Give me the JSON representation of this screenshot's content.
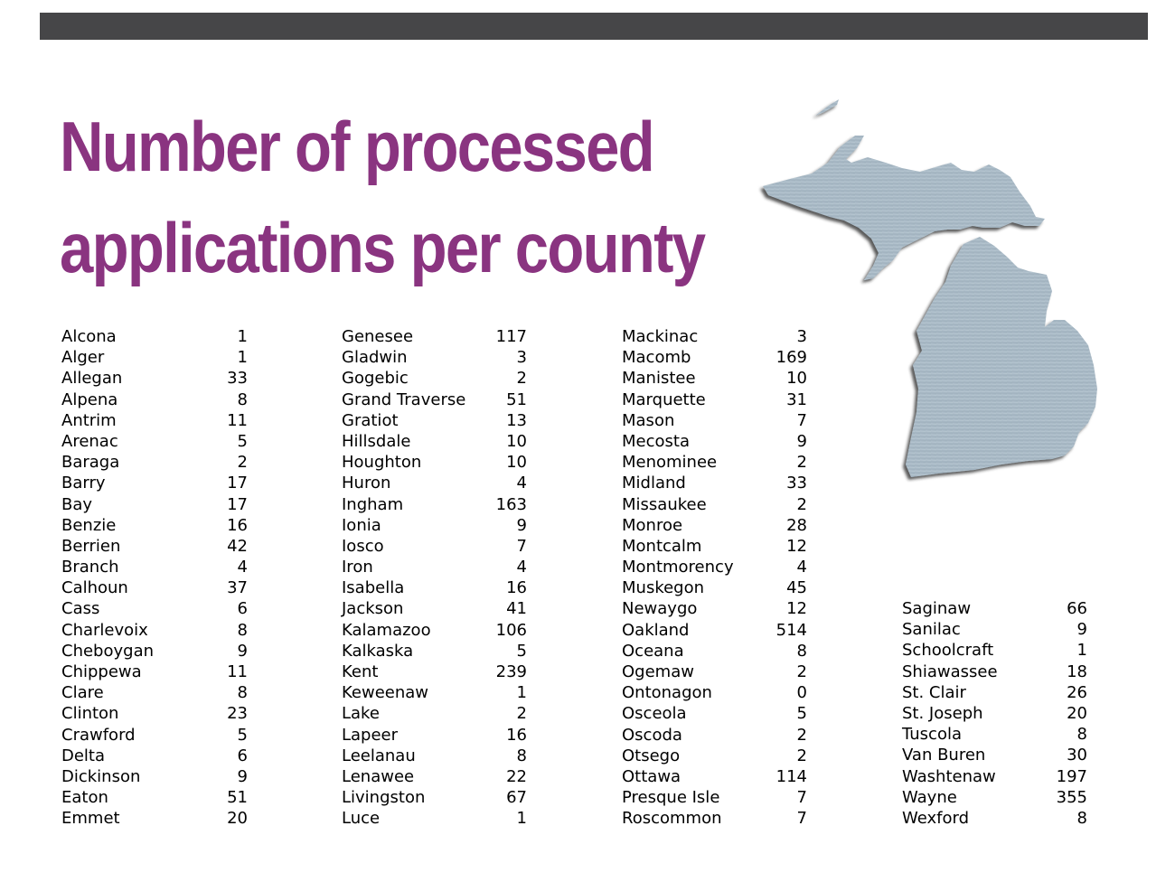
{
  "title": {
    "line1": "Number of processed",
    "line2": "applications per county"
  },
  "colors": {
    "title": "#8a3480",
    "bar": "#464648",
    "map": "#a9bac6"
  },
  "map_icon": "michigan-map",
  "columns": [
    [
      {
        "county": "Alcona",
        "count": "1"
      },
      {
        "county": "Alger",
        "count": "1"
      },
      {
        "county": "Allegan",
        "count": "33"
      },
      {
        "county": "Alpena",
        "count": "8"
      },
      {
        "county": "Antrim",
        "count": "11"
      },
      {
        "county": "Arenac",
        "count": "5"
      },
      {
        "county": "Baraga",
        "count": "2"
      },
      {
        "county": "Barry",
        "count": "17"
      },
      {
        "county": "Bay",
        "count": "17"
      },
      {
        "county": "Benzie",
        "count": "16"
      },
      {
        "county": "Berrien",
        "count": "42"
      },
      {
        "county": "Branch",
        "count": "4"
      },
      {
        "county": "Calhoun",
        "count": "37"
      },
      {
        "county": "Cass",
        "count": "6"
      },
      {
        "county": "Charlevoix",
        "count": "8"
      },
      {
        "county": "Cheboygan",
        "count": "9"
      },
      {
        "county": "Chippewa",
        "count": "11"
      },
      {
        "county": "Clare",
        "count": "8"
      },
      {
        "county": "Clinton",
        "count": "23"
      },
      {
        "county": "Crawford",
        "count": "5"
      },
      {
        "county": "Delta",
        "count": "6"
      },
      {
        "county": "Dickinson",
        "count": "9"
      },
      {
        "county": "Eaton",
        "count": "51"
      },
      {
        "county": "Emmet",
        "count": "20"
      }
    ],
    [
      {
        "county": "Genesee",
        "count": "117"
      },
      {
        "county": "Gladwin",
        "count": "3"
      },
      {
        "county": "Gogebic",
        "count": "2"
      },
      {
        "county": "Grand Traverse",
        "count": "51"
      },
      {
        "county": "Gratiot",
        "count": "13"
      },
      {
        "county": "Hillsdale",
        "count": "10"
      },
      {
        "county": "Houghton",
        "count": "10"
      },
      {
        "county": "Huron",
        "count": "4"
      },
      {
        "county": "Ingham",
        "count": "163"
      },
      {
        "county": "Ionia",
        "count": "9"
      },
      {
        "county": "Iosco",
        "count": "7"
      },
      {
        "county": "Iron",
        "count": "4"
      },
      {
        "county": "Isabella",
        "count": "16"
      },
      {
        "county": "Jackson",
        "count": "41"
      },
      {
        "county": "Kalamazoo",
        "count": "106"
      },
      {
        "county": "Kalkaska",
        "count": "5"
      },
      {
        "county": "Kent",
        "count": "239"
      },
      {
        "county": "Keweenaw",
        "count": "1"
      },
      {
        "county": "Lake",
        "count": "2"
      },
      {
        "county": "Lapeer",
        "count": "16"
      },
      {
        "county": "Leelanau",
        "count": "8"
      },
      {
        "county": "Lenawee",
        "count": "22"
      },
      {
        "county": "Livingston",
        "count": "67"
      },
      {
        "county": "Luce",
        "count": "1"
      }
    ],
    [
      {
        "county": "Mackinac",
        "count": "3"
      },
      {
        "county": "Macomb",
        "count": "169"
      },
      {
        "county": "Manistee",
        "count": "10"
      },
      {
        "county": "Marquette",
        "count": "31"
      },
      {
        "county": "Mason",
        "count": "7"
      },
      {
        "county": "Mecosta",
        "count": "9"
      },
      {
        "county": "Menominee",
        "count": "2"
      },
      {
        "county": "Midland",
        "count": "33"
      },
      {
        "county": "Missaukee",
        "count": "2"
      },
      {
        "county": "Monroe",
        "count": "28"
      },
      {
        "county": "Montcalm",
        "count": "12"
      },
      {
        "county": "Montmorency",
        "count": "4"
      },
      {
        "county": "Muskegon",
        "count": "45"
      },
      {
        "county": "Newaygo",
        "count": "12"
      },
      {
        "county": "Oakland",
        "count": "514"
      },
      {
        "county": "Oceana",
        "count": "8"
      },
      {
        "county": "Ogemaw",
        "count": "2"
      },
      {
        "county": "Ontonagon",
        "count": "0"
      },
      {
        "county": "Osceola",
        "count": "5"
      },
      {
        "county": "Oscoda",
        "count": "2"
      },
      {
        "county": "Otsego",
        "count": "2"
      },
      {
        "county": "Ottawa",
        "count": "114"
      },
      {
        "county": "Presque Isle",
        "count": "7"
      },
      {
        "county": "Roscommon",
        "count": "7"
      }
    ],
    [
      {
        "county": "Saginaw",
        "count": "66"
      },
      {
        "county": "Sanilac",
        "count": "9"
      },
      {
        "county": "Schoolcraft",
        "count": "1"
      },
      {
        "county": "Shiawassee",
        "count": "18"
      },
      {
        "county": "St. Clair",
        "count": "26"
      },
      {
        "county": "St. Joseph",
        "count": "20"
      },
      {
        "county": "Tuscola",
        "count": "8"
      },
      {
        "county": "Van Buren",
        "count": "30"
      },
      {
        "county": "Washtenaw",
        "count": "197"
      },
      {
        "county": "Wayne",
        "count": "355"
      },
      {
        "county": "Wexford",
        "count": "8"
      }
    ]
  ]
}
